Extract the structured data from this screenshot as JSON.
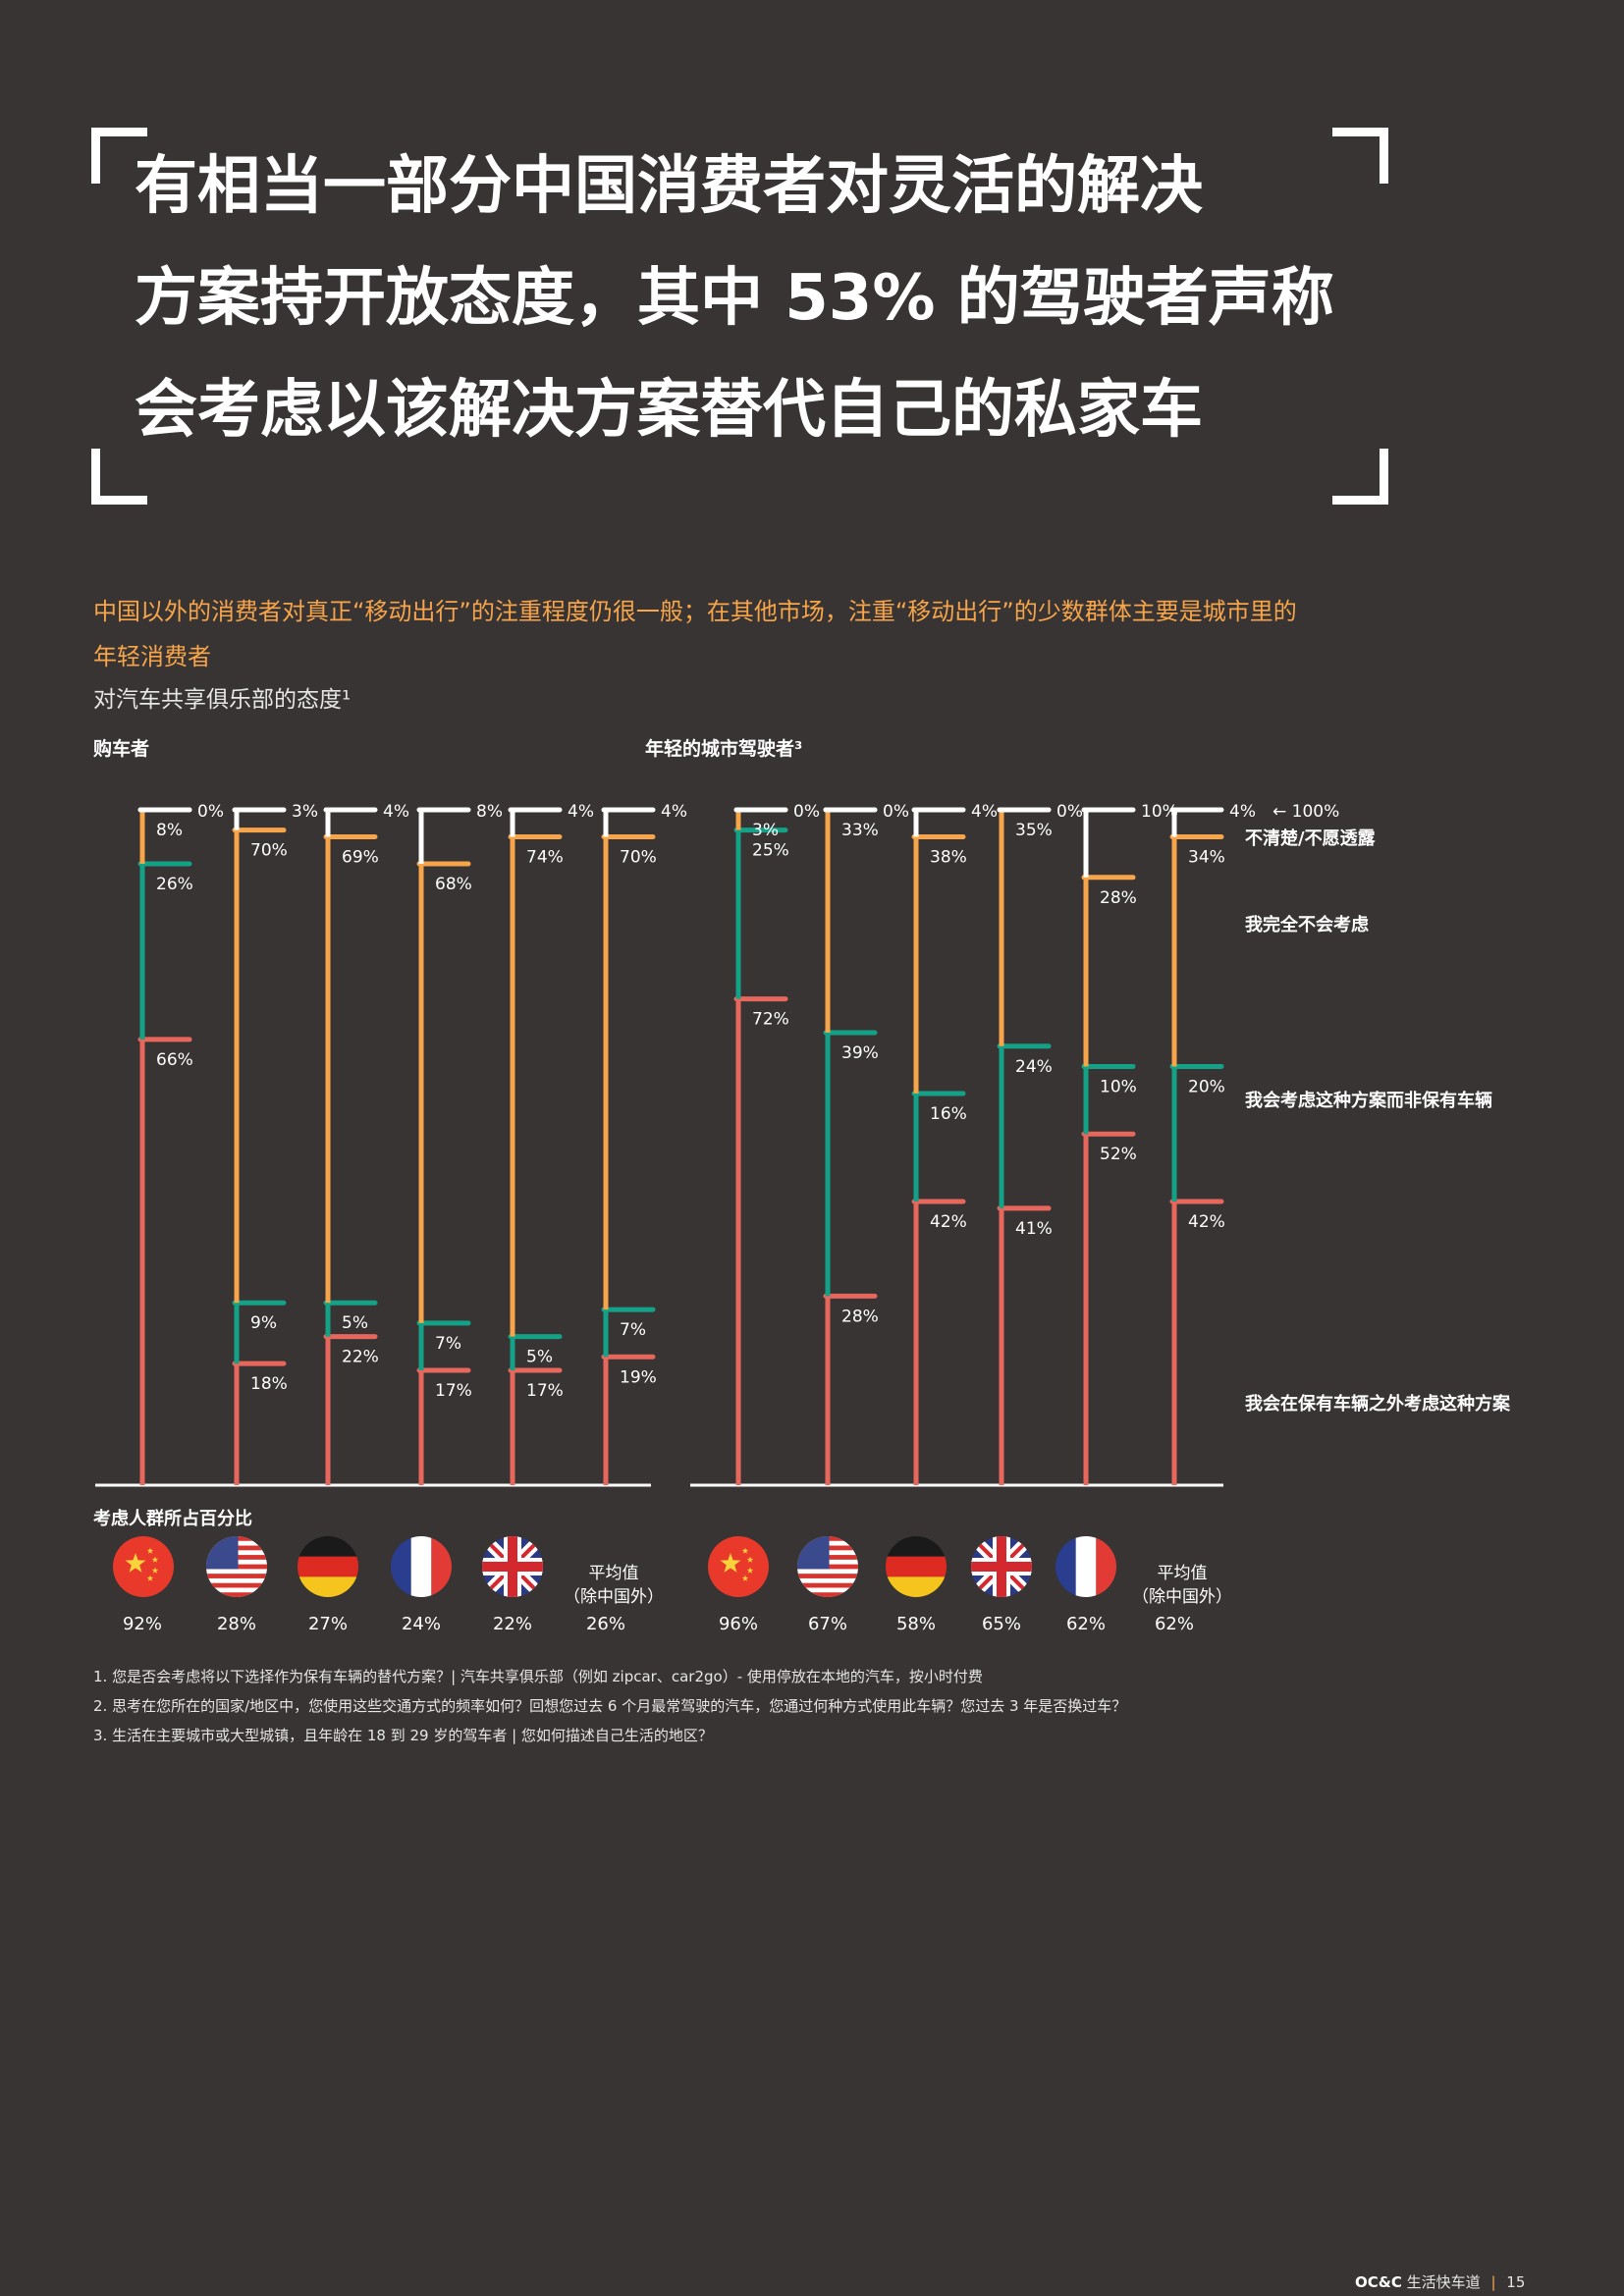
{
  "headline": {
    "lines": [
      "有相当一部分中国消费者对灵活的解决",
      "方案持开放态度，其中 53% 的驾驶者声称",
      "会考虑以该解决方案替代自己的私家车"
    ]
  },
  "subtitle": {
    "lines": [
      "中国以外的消费者对真正“移动出行”的注重程度仍很一般；在其他市场，注重“移动出行”的少数群体主要是城市里的",
      "年轻消费者"
    ]
  },
  "chart_title": "对汽车共享俱乐部的态度¹",
  "colors": {
    "background": "#383433",
    "not_sure": "#ffffff",
    "not_consider": "#f7a54a",
    "replace": "#13a287",
    "addition": "#e8675d"
  },
  "chart_data": {
    "type": "bar",
    "orientation": "vertical-stacked-brackets",
    "ylim": [
      0,
      100
    ],
    "top_label": "← 100%",
    "legend": [
      {
        "key": "not_sure",
        "label": "不清楚/不愿透露"
      },
      {
        "key": "not_consider",
        "label": "我完全不会考虑"
      },
      {
        "key": "replace",
        "label": "我会考虑这种方案而非保有车辆"
      },
      {
        "key": "addition",
        "label": "我会在保有车辆之外考虑这种方案"
      }
    ],
    "groups": [
      {
        "title": "购车者",
        "bars": [
          {
            "country": "China",
            "addition": 66,
            "replace": 26,
            "not_consider": 8,
            "not_sure": 0,
            "consider_total": "92%"
          },
          {
            "country": "USA",
            "addition": 18,
            "replace": 9,
            "not_consider": 70,
            "not_sure": 3,
            "consider_total": "28%"
          },
          {
            "country": "Germany",
            "addition": 22,
            "replace": 5,
            "not_consider": 69,
            "not_sure": 4,
            "consider_total": "27%"
          },
          {
            "country": "France",
            "addition": 17,
            "replace": 7,
            "not_consider": 68,
            "not_sure": 8,
            "consider_total": "24%"
          },
          {
            "country": "UK",
            "addition": 17,
            "replace": 5,
            "not_consider": 74,
            "not_sure": 4,
            "consider_total": "22%"
          },
          {
            "country": "Average",
            "label": "平均值\n（除中国外）",
            "addition": 19,
            "replace": 7,
            "not_consider": 70,
            "not_sure": 4,
            "consider_total": "26%"
          }
        ]
      },
      {
        "title": "年轻的城市驾驶者³",
        "bars": [
          {
            "country": "China",
            "addition": 72,
            "replace": 25,
            "not_consider": 3,
            "not_sure": 0,
            "consider_total": "96%"
          },
          {
            "country": "USA",
            "addition": 28,
            "replace": 39,
            "not_consider": 33,
            "not_sure": 0,
            "consider_total": "67%"
          },
          {
            "country": "Germany",
            "addition": 42,
            "replace": 16,
            "not_consider": 38,
            "not_sure": 4,
            "consider_total": "58%"
          },
          {
            "country": "UK",
            "addition": 41,
            "replace": 24,
            "not_consider": 35,
            "not_sure": 0,
            "consider_total": "65%"
          },
          {
            "country": "France",
            "addition": 52,
            "replace": 10,
            "not_consider": 28,
            "not_sure": 10,
            "consider_total": "62%"
          },
          {
            "country": "Average",
            "label": "平均值\n（除中国外）",
            "addition": 42,
            "replace": 20,
            "not_consider": 34,
            "not_sure": 4,
            "consider_total": "62%"
          }
        ]
      }
    ]
  },
  "flags_caption": "考虑人群所占百分比",
  "footnotes": [
    "1. 您是否会考虑将以下选择作为保有车辆的替代方案？| 汽车共享俱乐部（例如 zipcar、car2go）- 使用停放在本地的汽车，按小时付费",
    "2. 思考在您所在的国家/地区中，您使用这些交通方式的频率如何？回想您过去 6 个月最常驾驶的汽车，您通过何种方式使用此车辆？您过去 3 年是否换过车？",
    "3. 生活在主要城市或大型城镇，且年龄在 18 到 29 岁的驾车者 | 您如何描述自己生活的地区？"
  ],
  "footer": {
    "brand": "OC&C",
    "title": "生活快车道",
    "page": "15"
  }
}
